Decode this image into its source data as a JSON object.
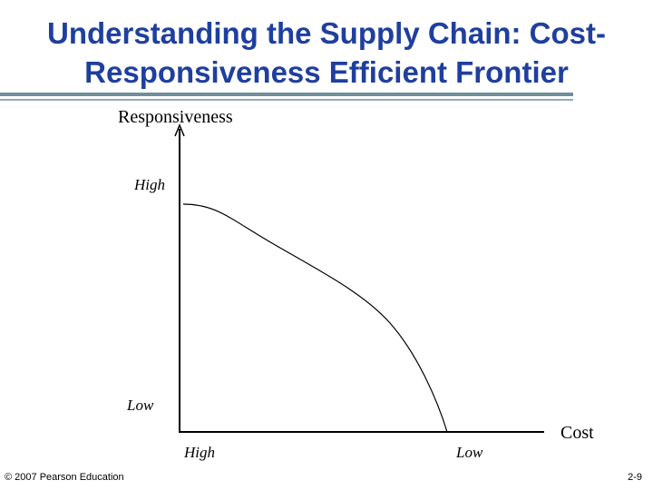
{
  "header": {
    "title_lines": [
      "Understanding the Supply Chain: Cost-",
      "Responsiveness Efficient Frontier"
    ]
  },
  "diagram": {
    "y_axis_label": "Responsiveness",
    "x_axis_label": "Cost",
    "y_axis_ticks": [
      "High",
      "Low"
    ],
    "x_axis_ticks": [
      "High",
      "Low"
    ]
  },
  "footer": {
    "copyright": "© 2007 Pearson Education",
    "page": "2-9"
  }
}
